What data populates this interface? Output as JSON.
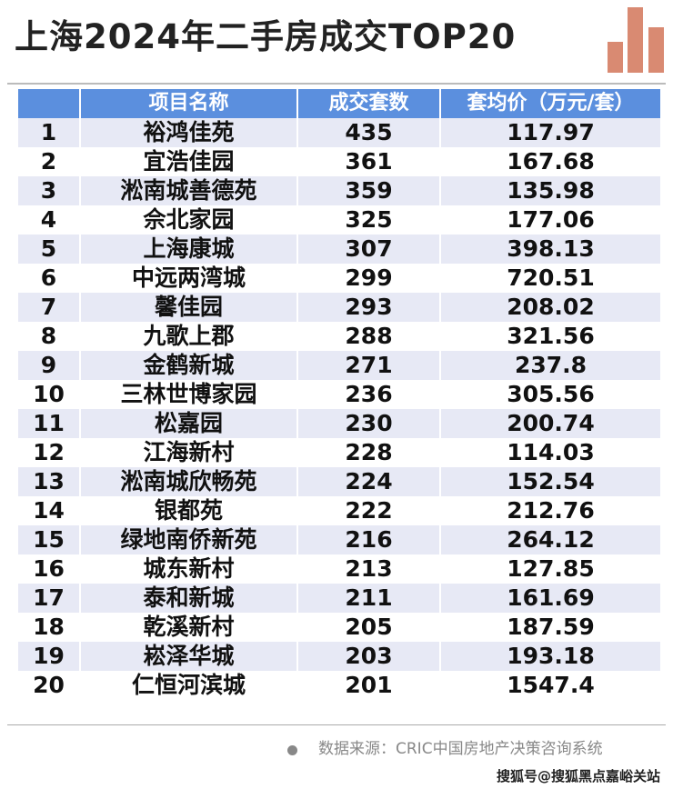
{
  "title": "上海2024年二手房成交TOP20",
  "colors": {
    "header_bg": "#5b8fde",
    "row_alt_bg": "#e7e9f5",
    "logo": "#d98a72"
  },
  "chart_data": {
    "type": "table",
    "title": "上海2024年二手房成交TOP20",
    "columns": [
      "",
      "项目名称",
      "成交套数",
      "套均价（万元/套）"
    ],
    "rows": [
      [
        "1",
        "裕鸿佳苑",
        "435",
        "117.97"
      ],
      [
        "2",
        "宜浩佳园",
        "361",
        "167.68"
      ],
      [
        "3",
        "淞南城善德苑",
        "359",
        "135.98"
      ],
      [
        "4",
        "佘北家园",
        "325",
        "177.06"
      ],
      [
        "5",
        "上海康城",
        "307",
        "398.13"
      ],
      [
        "6",
        "中远两湾城",
        "299",
        "720.51"
      ],
      [
        "7",
        "馨佳园",
        "293",
        "208.02"
      ],
      [
        "8",
        "九歌上郡",
        "288",
        "321.56"
      ],
      [
        "9",
        "金鹤新城",
        "271",
        "237.8"
      ],
      [
        "10",
        "三林世博家园",
        "236",
        "305.56"
      ],
      [
        "11",
        "松嘉园",
        "230",
        "200.74"
      ],
      [
        "12",
        "江海新村",
        "228",
        "114.03"
      ],
      [
        "13",
        "淞南城欣畅苑",
        "224",
        "152.54"
      ],
      [
        "14",
        "银都苑",
        "222",
        "212.76"
      ],
      [
        "15",
        "绿地南侨新苑",
        "216",
        "264.12"
      ],
      [
        "16",
        "城东新村",
        "213",
        "127.85"
      ],
      [
        "17",
        "泰和新城",
        "211",
        "161.69"
      ],
      [
        "18",
        "乾溪新村",
        "205",
        "187.59"
      ],
      [
        "19",
        "崧泽华城",
        "203",
        "193.18"
      ],
      [
        "20",
        "仁恒河滨城",
        "201",
        "1547.4"
      ]
    ]
  },
  "footer": {
    "source": "数据来源：CRIC中国房地产决策咨询系统",
    "watermark": "搜狐号@搜狐黑点嘉峪关站"
  }
}
